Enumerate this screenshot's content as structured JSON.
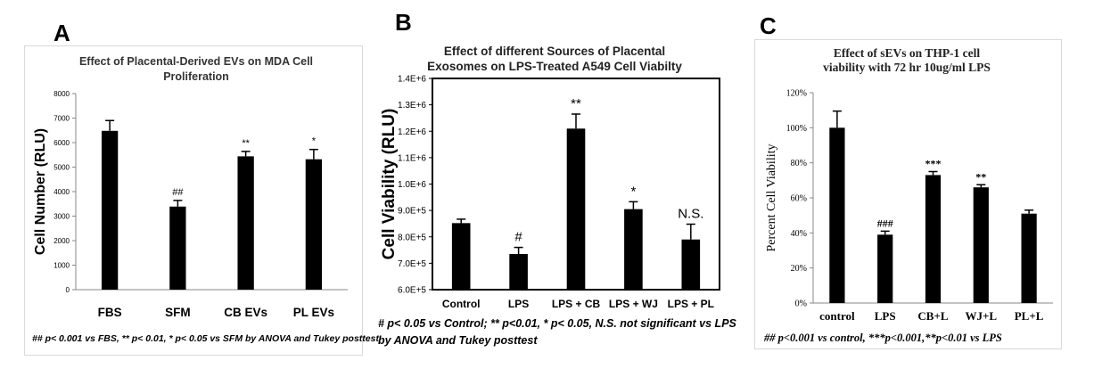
{
  "chart_data": [
    {
      "panel_label": "A",
      "type": "bar",
      "title": "Effect of Placental-Derived EVs on MDA Cell Proliferation",
      "title_lines": [
        "Effect of Placental-Derived EVs on MDA Cell",
        "Proliferation"
      ],
      "xlabel": "",
      "ylabel": "Cell Number (RLU)",
      "ylim": [
        0,
        8000
      ],
      "yticks": [
        "0",
        "1000",
        "2000",
        "3000",
        "4000",
        "5000",
        "6000",
        "7000",
        "8000"
      ],
      "ytick_values": [
        0,
        1000,
        2000,
        3000,
        4000,
        5000,
        6000,
        7000,
        8000
      ],
      "categories": [
        "FBS",
        "SFM",
        "CB EVs",
        "PL EVs"
      ],
      "values": [
        6480,
        3390,
        5440,
        5320
      ],
      "errors": [
        420,
        250,
        200,
        400
      ],
      "annotations": [
        "",
        "##",
        "**",
        "*"
      ],
      "grid": false,
      "footnote": "## p< 0.001 vs FBS, ** p< 0.01, * p< 0.05 vs SFM by ANOVA and Tukey posttest"
    },
    {
      "panel_label": "B",
      "type": "bar",
      "title": "Effect of different Sources of Placental Exosomes on LPS-Treated A549 Cell Viabilty",
      "title_lines": [
        "Effect of different Sources of Placental",
        "Exosomes on LPS-Treated A549  Cell Viabilty"
      ],
      "xlabel": "",
      "ylabel": "Cell Viability (RLU)",
      "ylim": [
        600000,
        1400000
      ],
      "yticks": [
        "6.0E+5",
        "7.0E+5",
        "8.0E+5",
        "9.0E+5",
        "1.0E+6",
        "1.1E+6",
        "1.2E+6",
        "1.3E+6",
        "1.4E+6"
      ],
      "ytick_values": [
        600000,
        700000,
        800000,
        900000,
        1000000,
        1100000,
        1200000,
        1300000,
        1400000
      ],
      "categories": [
        "Control",
        "LPS",
        "LPS + CB",
        "LPS + WJ",
        "LPS + PL"
      ],
      "values": [
        852000,
        735000,
        1210000,
        905000,
        790000
      ],
      "errors": [
        15000,
        25000,
        55000,
        28000,
        58000
      ],
      "annotations": [
        "",
        "#",
        "**",
        "*",
        "N.S."
      ],
      "grid": false,
      "footnote_lines": [
        "# p< 0.05 vs Control; ** p<0.01, * p< 0.05, N.S. not significant vs LPS",
        "by ANOVA and Tukey posttest"
      ]
    },
    {
      "panel_label": "C",
      "type": "bar",
      "title": "Effect of sEVs on THP-1 cell viability with 72 hr 10ug/ml LPS",
      "title_lines": [
        "Effect of sEVs on THP-1 cell",
        "viability with 72 hr 10ug/ml LPS"
      ],
      "xlabel": "",
      "ylabel": "Percent Cell Viability",
      "ylim": [
        0,
        1.2
      ],
      "yticks": [
        "0%",
        "20%",
        "40%",
        "60%",
        "80%",
        "100%",
        "120%"
      ],
      "ytick_values": [
        0,
        0.2,
        0.4,
        0.6,
        0.8,
        1.0,
        1.2
      ],
      "categories": [
        "control",
        "LPS",
        "CB+L",
        "WJ+L",
        "PL+L"
      ],
      "values": [
        1.0,
        0.39,
        0.73,
        0.66,
        0.51
      ],
      "errors": [
        0.095,
        0.02,
        0.02,
        0.015,
        0.02
      ],
      "annotations": [
        "",
        "###",
        "***",
        "**",
        ""
      ],
      "grid": false,
      "footnote": "## p<0.001 vs control, ***p<0.001,**p<0.01 vs LPS"
    }
  ]
}
